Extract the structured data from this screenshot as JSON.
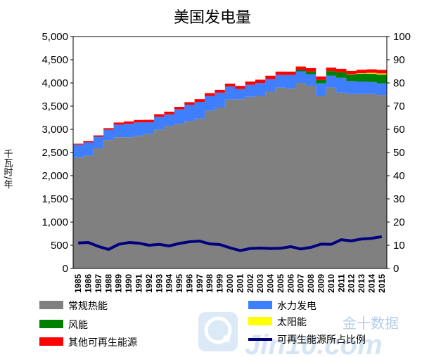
{
  "chart_data": {
    "type": "area",
    "title": "美国发电量",
    "ylabel": "千瓦时/年",
    "ylim": [
      0,
      5000
    ],
    "yticks": [
      "0",
      "500",
      "1,000",
      "1,500",
      "2,000",
      "2,500",
      "3,000",
      "3,500",
      "4,000",
      "4,500",
      "5,000"
    ],
    "y2lim": [
      0,
      100
    ],
    "y2ticks": [
      "0",
      "10",
      "20",
      "30",
      "40",
      "50",
      "60",
      "70",
      "80",
      "90",
      "100"
    ],
    "x": [
      "1985",
      "1986",
      "1987",
      "1988",
      "1989",
      "1990",
      "1991",
      "1992",
      "1993",
      "1994",
      "1995",
      "1996",
      "1997",
      "1998",
      "1999",
      "2000",
      "2001",
      "2002",
      "2003",
      "2004",
      "2005",
      "2006",
      "2007",
      "2008",
      "2009",
      "2010",
      "2011",
      "2012",
      "2013",
      "2014",
      "2015"
    ],
    "series": [
      {
        "name": "常规热能",
        "type": "area",
        "color": "#808080",
        "values": [
          2390,
          2430,
          2590,
          2770,
          2830,
          2830,
          2860,
          2900,
          2990,
          3070,
          3120,
          3180,
          3230,
          3400,
          3470,
          3640,
          3650,
          3700,
          3720,
          3810,
          3900,
          3880,
          4000,
          3940,
          3720,
          3900,
          3790,
          3760,
          3760,
          3760,
          3740
        ]
      },
      {
        "name": "水力发电",
        "type": "area",
        "color": "#3f7fff",
        "values": [
          280,
          290,
          250,
          220,
          270,
          290,
          290,
          250,
          280,
          250,
          310,
          350,
          360,
          320,
          320,
          280,
          220,
          260,
          280,
          270,
          270,
          290,
          250,
          250,
          270,
          260,
          320,
          280,
          270,
          260,
          250
        ]
      },
      {
        "name": "风能",
        "type": "area",
        "color": "#008000",
        "values": [
          0,
          0,
          0,
          0,
          0,
          0,
          0,
          0,
          0,
          0,
          0,
          0,
          0,
          0,
          0,
          0,
          0,
          0,
          0,
          0,
          0,
          0,
          30,
          55,
          75,
          95,
          120,
          140,
          170,
          180,
          190
        ]
      },
      {
        "name": "太阳能",
        "type": "area",
        "color": "#ffff00",
        "values": [
          0,
          0,
          0,
          0,
          0,
          0,
          0,
          0,
          0,
          0,
          0,
          0,
          0,
          0,
          0,
          0,
          0,
          0,
          0,
          0,
          0,
          0,
          0,
          0,
          0,
          0,
          0,
          5,
          10,
          18,
          25
        ]
      },
      {
        "name": "其他可再生能源",
        "type": "area",
        "color": "#ff0000",
        "values": [
          20,
          25,
          30,
          35,
          45,
          50,
          50,
          55,
          55,
          60,
          55,
          55,
          60,
          60,
          60,
          65,
          65,
          70,
          70,
          75,
          75,
          75,
          75,
          75,
          75,
          75,
          75,
          75,
          75,
          75,
          75
        ]
      },
      {
        "name": "可再生能源所占比例",
        "type": "line",
        "color": "#00007f",
        "axis": "right",
        "values": [
          11.0,
          11.2,
          9.5,
          8.2,
          10.4,
          11.2,
          10.9,
          10.0,
          10.4,
          9.7,
          10.8,
          11.5,
          11.8,
          10.6,
          10.3,
          8.9,
          7.7,
          8.6,
          8.8,
          8.6,
          8.7,
          9.4,
          8.4,
          9.1,
          10.5,
          10.4,
          12.4,
          11.9,
          12.7,
          13.0,
          13.7
        ]
      }
    ],
    "grid": false,
    "legend_position": "bottom"
  },
  "legend": [
    {
      "label": "常规热能",
      "color": "#808080",
      "kind": "box"
    },
    {
      "label": "水力发电",
      "color": "#3f7fff",
      "kind": "box"
    },
    {
      "label": "风能",
      "color": "#008000",
      "kind": "box"
    },
    {
      "label": "太阳能",
      "color": "#ffff00",
      "kind": "box"
    },
    {
      "label": "其他可再生能源",
      "color": "#ff0000",
      "kind": "box"
    },
    {
      "label": "可再生能源所占比例",
      "color": "#00007f",
      "kind": "line"
    }
  ],
  "watermark": {
    "text": "金十数据",
    "brand": "Jin10.com"
  }
}
